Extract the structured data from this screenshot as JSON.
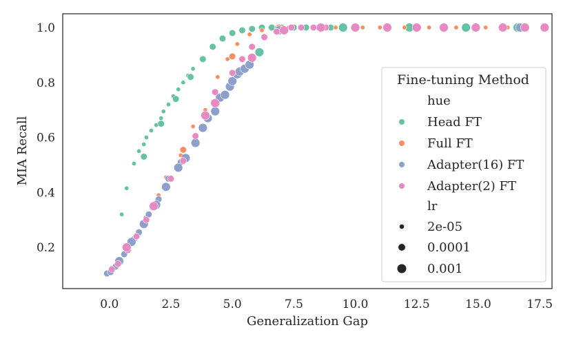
{
  "chart_data": {
    "type": "scatter",
    "title": "",
    "xlabel": "Generalization Gap",
    "ylabel": "MIA Recall",
    "xlim": [
      -1.9,
      18.0
    ],
    "ylim": [
      0.05,
      1.05
    ],
    "xticks": [
      0.0,
      2.5,
      5.0,
      7.5,
      10.0,
      12.5,
      15.0,
      17.5
    ],
    "xtick_labels": [
      "0.0",
      "2.5",
      "5.0",
      "7.5",
      "10.0",
      "12.5",
      "15.0",
      "17.5"
    ],
    "yticks": [
      0.2,
      0.4,
      0.6,
      0.8,
      1.0
    ],
    "ytick_labels": [
      "0.2",
      "0.4",
      "0.6",
      "0.8",
      "1.0"
    ],
    "grid": false,
    "legend": {
      "position": "right",
      "title": "Fine-tuning Method",
      "hue_title": "hue",
      "size_title": "lr",
      "hue_entries": [
        {
          "label": "Head FT",
          "color": "#66c2a5"
        },
        {
          "label": "Full FT",
          "color": "#fc8d62"
        },
        {
          "label": "Adapter(16) FT",
          "color": "#8da0cb"
        },
        {
          "label": "Adapter(2) FT",
          "color": "#e78ac3"
        }
      ],
      "size_entries": [
        {
          "label": "2e-05",
          "size_class": "small"
        },
        {
          "label": "0.0001",
          "size_class": "medium"
        },
        {
          "label": "0.001",
          "size_class": "large"
        }
      ]
    },
    "series": [
      {
        "name": "Head FT",
        "color": "#66c2a5",
        "points": [
          {
            "x": 0.5,
            "y": 0.32,
            "lr": "2e-05"
          },
          {
            "x": 0.7,
            "y": 0.415,
            "lr": "2e-05"
          },
          {
            "x": 1.0,
            "y": 0.505,
            "lr": "2e-05"
          },
          {
            "x": 1.2,
            "y": 0.55,
            "lr": "2e-05"
          },
          {
            "x": 1.4,
            "y": 0.575,
            "lr": "2e-05"
          },
          {
            "x": 1.5,
            "y": 0.6,
            "lr": "2e-05"
          },
          {
            "x": 1.7,
            "y": 0.625,
            "lr": "2e-05"
          },
          {
            "x": 1.9,
            "y": 0.645,
            "lr": "2e-05"
          },
          {
            "x": 2.1,
            "y": 0.67,
            "lr": "2e-05"
          },
          {
            "x": 2.2,
            "y": 0.695,
            "lr": "2e-05"
          },
          {
            "x": 2.4,
            "y": 0.72,
            "lr": "2e-05"
          },
          {
            "x": 2.6,
            "y": 0.75,
            "lr": "2e-05"
          },
          {
            "x": 2.8,
            "y": 0.775,
            "lr": "2e-05"
          },
          {
            "x": 3.0,
            "y": 0.8,
            "lr": "2e-05"
          },
          {
            "x": 3.2,
            "y": 0.825,
            "lr": "2e-05"
          },
          {
            "x": 3.4,
            "y": 0.85,
            "lr": "2e-05"
          },
          {
            "x": 1.4,
            "y": 0.53,
            "lr": "0.0001"
          },
          {
            "x": 2.1,
            "y": 0.65,
            "lr": "0.0001"
          },
          {
            "x": 2.7,
            "y": 0.74,
            "lr": "0.0001"
          },
          {
            "x": 3.3,
            "y": 0.82,
            "lr": "0.0001"
          },
          {
            "x": 3.8,
            "y": 0.885,
            "lr": "0.0001"
          },
          {
            "x": 4.2,
            "y": 0.93,
            "lr": "0.0001"
          },
          {
            "x": 4.6,
            "y": 0.96,
            "lr": "0.0001"
          },
          {
            "x": 5.0,
            "y": 0.98,
            "lr": "0.0001"
          },
          {
            "x": 5.4,
            "y": 0.99,
            "lr": "0.0001"
          },
          {
            "x": 5.8,
            "y": 0.995,
            "lr": "0.0001"
          },
          {
            "x": 6.2,
            "y": 1.0,
            "lr": "0.0001"
          },
          {
            "x": 6.6,
            "y": 1.0,
            "lr": "0.0001"
          },
          {
            "x": 7.0,
            "y": 1.0,
            "lr": "0.0001"
          },
          {
            "x": 7.5,
            "y": 1.0,
            "lr": "0.0001"
          },
          {
            "x": 8.0,
            "y": 1.0,
            "lr": "0.0001"
          },
          {
            "x": 8.5,
            "y": 1.0,
            "lr": "0.0001"
          },
          {
            "x": 9.0,
            "y": 1.0,
            "lr": "0.0001"
          },
          {
            "x": 6.1,
            "y": 0.91,
            "lr": "0.001"
          },
          {
            "x": 9.5,
            "y": 1.0,
            "lr": "0.001"
          },
          {
            "x": 12.2,
            "y": 1.0,
            "lr": "0.001"
          },
          {
            "x": 14.5,
            "y": 1.0,
            "lr": "0.001"
          },
          {
            "x": 16.6,
            "y": 1.0,
            "lr": "0.001"
          }
        ]
      },
      {
        "name": "Full FT",
        "color": "#fc8d62",
        "points": [
          {
            "x": 0.4,
            "y": 0.14,
            "lr": "2e-05"
          },
          {
            "x": 1.0,
            "y": 0.23,
            "lr": "2e-05"
          },
          {
            "x": 1.6,
            "y": 0.32,
            "lr": "2e-05"
          },
          {
            "x": 2.0,
            "y": 0.39,
            "lr": "2e-05"
          },
          {
            "x": 2.3,
            "y": 0.455,
            "lr": "2e-05"
          },
          {
            "x": 2.9,
            "y": 0.535,
            "lr": "2e-05"
          },
          {
            "x": 3.4,
            "y": 0.64,
            "lr": "2e-05"
          },
          {
            "x": 3.9,
            "y": 0.7,
            "lr": "2e-05"
          },
          {
            "x": 4.4,
            "y": 0.82,
            "lr": "2e-05"
          },
          {
            "x": 4.8,
            "y": 0.885,
            "lr": "2e-05"
          },
          {
            "x": 5.2,
            "y": 0.94,
            "lr": "2e-05"
          },
          {
            "x": 5.7,
            "y": 0.975,
            "lr": "2e-05"
          },
          {
            "x": 6.2,
            "y": 0.99,
            "lr": "2e-05"
          },
          {
            "x": 6.8,
            "y": 1.0,
            "lr": "2e-05"
          },
          {
            "x": 7.3,
            "y": 1.0,
            "lr": "2e-05"
          },
          {
            "x": 7.8,
            "y": 1.0,
            "lr": "2e-05"
          },
          {
            "x": 8.4,
            "y": 1.0,
            "lr": "2e-05"
          },
          {
            "x": 9.2,
            "y": 1.0,
            "lr": "2e-05"
          },
          {
            "x": 10.3,
            "y": 1.0,
            "lr": "2e-05"
          },
          {
            "x": 11.0,
            "y": 1.0,
            "lr": "2e-05"
          },
          {
            "x": 12.0,
            "y": 1.0,
            "lr": "2e-05"
          },
          {
            "x": 13.0,
            "y": 1.0,
            "lr": "2e-05"
          },
          {
            "x": 14.1,
            "y": 1.0,
            "lr": "2e-05"
          },
          {
            "x": 15.3,
            "y": 1.0,
            "lr": "2e-05"
          },
          {
            "x": 16.2,
            "y": 1.0,
            "lr": "2e-05"
          },
          {
            "x": 17.0,
            "y": 1.0,
            "lr": "2e-05"
          },
          {
            "x": 3.0,
            "y": 0.555,
            "lr": "0.0001"
          },
          {
            "x": 5.0,
            "y": 0.895,
            "lr": "0.0001"
          },
          {
            "x": 6.9,
            "y": 1.0,
            "lr": "0.0001"
          }
        ]
      },
      {
        "name": "Adapter(16) FT",
        "color": "#8da0cb",
        "points": [
          {
            "x": -0.1,
            "y": 0.105,
            "lr": "0.0001"
          },
          {
            "x": 0.05,
            "y": 0.11,
            "lr": "0.0001"
          },
          {
            "x": 0.25,
            "y": 0.13,
            "lr": "0.0001"
          },
          {
            "x": 0.6,
            "y": 0.175,
            "lr": "0.0001"
          },
          {
            "x": 1.0,
            "y": 0.23,
            "lr": "0.0001"
          },
          {
            "x": 1.2,
            "y": 0.255,
            "lr": "0.0001"
          },
          {
            "x": 1.5,
            "y": 0.305,
            "lr": "0.0001"
          },
          {
            "x": 1.6,
            "y": 0.32,
            "lr": "0.0001"
          },
          {
            "x": 1.75,
            "y": 0.345,
            "lr": "0.0001"
          },
          {
            "x": 2.0,
            "y": 0.375,
            "lr": "0.0001"
          },
          {
            "x": 2.4,
            "y": 0.45,
            "lr": "0.0001"
          },
          {
            "x": 2.9,
            "y": 0.51,
            "lr": "0.0001"
          },
          {
            "x": 3.1,
            "y": 0.53,
            "lr": "0.0001"
          },
          {
            "x": 0.4,
            "y": 0.15,
            "lr": "0.001"
          },
          {
            "x": 0.9,
            "y": 0.22,
            "lr": "0.001"
          },
          {
            "x": 1.4,
            "y": 0.285,
            "lr": "0.001"
          },
          {
            "x": 1.9,
            "y": 0.355,
            "lr": "0.001"
          },
          {
            "x": 2.3,
            "y": 0.42,
            "lr": "0.001"
          },
          {
            "x": 2.8,
            "y": 0.49,
            "lr": "0.001"
          },
          {
            "x": 3.1,
            "y": 0.525,
            "lr": "0.001"
          },
          {
            "x": 3.5,
            "y": 0.58,
            "lr": "0.001"
          },
          {
            "x": 3.8,
            "y": 0.635,
            "lr": "0.001"
          },
          {
            "x": 4.0,
            "y": 0.67,
            "lr": "0.001"
          },
          {
            "x": 4.3,
            "y": 0.695,
            "lr": "0.001"
          },
          {
            "x": 4.5,
            "y": 0.745,
            "lr": "0.001"
          },
          {
            "x": 4.7,
            "y": 0.755,
            "lr": "0.001"
          },
          {
            "x": 4.9,
            "y": 0.785,
            "lr": "0.001"
          },
          {
            "x": 5.0,
            "y": 0.805,
            "lr": "0.001"
          },
          {
            "x": 5.2,
            "y": 0.83,
            "lr": "0.001"
          },
          {
            "x": 5.3,
            "y": 0.84,
            "lr": "0.001"
          },
          {
            "x": 5.5,
            "y": 0.85,
            "lr": "0.001"
          },
          {
            "x": 5.7,
            "y": 0.865,
            "lr": "0.001"
          },
          {
            "x": 6.9,
            "y": 0.99,
            "lr": "0.001"
          },
          {
            "x": 16.7,
            "y": 1.0,
            "lr": "0.001"
          }
        ]
      },
      {
        "name": "Adapter(2) FT",
        "color": "#e78ac3",
        "points": [
          {
            "x": 0.1,
            "y": 0.12,
            "lr": "0.0001"
          },
          {
            "x": 0.35,
            "y": 0.14,
            "lr": "0.0001"
          },
          {
            "x": 0.75,
            "y": 0.19,
            "lr": "0.0001"
          },
          {
            "x": 1.1,
            "y": 0.24,
            "lr": "0.0001"
          },
          {
            "x": 1.5,
            "y": 0.3,
            "lr": "0.0001"
          },
          {
            "x": 2.5,
            "y": 0.45,
            "lr": "0.0001"
          },
          {
            "x": 3.0,
            "y": 0.515,
            "lr": "0.0001"
          },
          {
            "x": 3.5,
            "y": 0.605,
            "lr": "0.0001"
          },
          {
            "x": 4.3,
            "y": 0.765,
            "lr": "0.0001"
          },
          {
            "x": 5.0,
            "y": 0.835,
            "lr": "0.0001"
          },
          {
            "x": 5.4,
            "y": 0.885,
            "lr": "0.0001"
          },
          {
            "x": 5.8,
            "y": 0.93,
            "lr": "0.0001"
          },
          {
            "x": 6.3,
            "y": 0.965,
            "lr": "0.0001"
          },
          {
            "x": 6.8,
            "y": 0.985,
            "lr": "0.0001"
          },
          {
            "x": 7.4,
            "y": 1.0,
            "lr": "0.0001"
          },
          {
            "x": 7.8,
            "y": 1.0,
            "lr": "0.0001"
          },
          {
            "x": 8.3,
            "y": 1.0,
            "lr": "0.0001"
          },
          {
            "x": 8.8,
            "y": 1.0,
            "lr": "0.0001"
          },
          {
            "x": 0.7,
            "y": 0.2,
            "lr": "0.001"
          },
          {
            "x": 1.8,
            "y": 0.35,
            "lr": "0.001"
          },
          {
            "x": 3.9,
            "y": 0.68,
            "lr": "0.001"
          },
          {
            "x": 4.3,
            "y": 0.725,
            "lr": "0.001"
          },
          {
            "x": 5.8,
            "y": 0.89,
            "lr": "0.001"
          },
          {
            "x": 7.1,
            "y": 0.99,
            "lr": "0.001"
          },
          {
            "x": 8.6,
            "y": 1.0,
            "lr": "0.001"
          },
          {
            "x": 10.0,
            "y": 1.0,
            "lr": "0.001"
          },
          {
            "x": 11.3,
            "y": 1.0,
            "lr": "0.001"
          },
          {
            "x": 12.5,
            "y": 1.0,
            "lr": "0.001"
          },
          {
            "x": 13.6,
            "y": 1.0,
            "lr": "0.001"
          },
          {
            "x": 14.9,
            "y": 1.0,
            "lr": "0.001"
          },
          {
            "x": 16.0,
            "y": 1.0,
            "lr": "0.001"
          },
          {
            "x": 16.9,
            "y": 1.0,
            "lr": "0.001"
          },
          {
            "x": 17.7,
            "y": 1.0,
            "lr": "0.001"
          }
        ]
      }
    ]
  }
}
